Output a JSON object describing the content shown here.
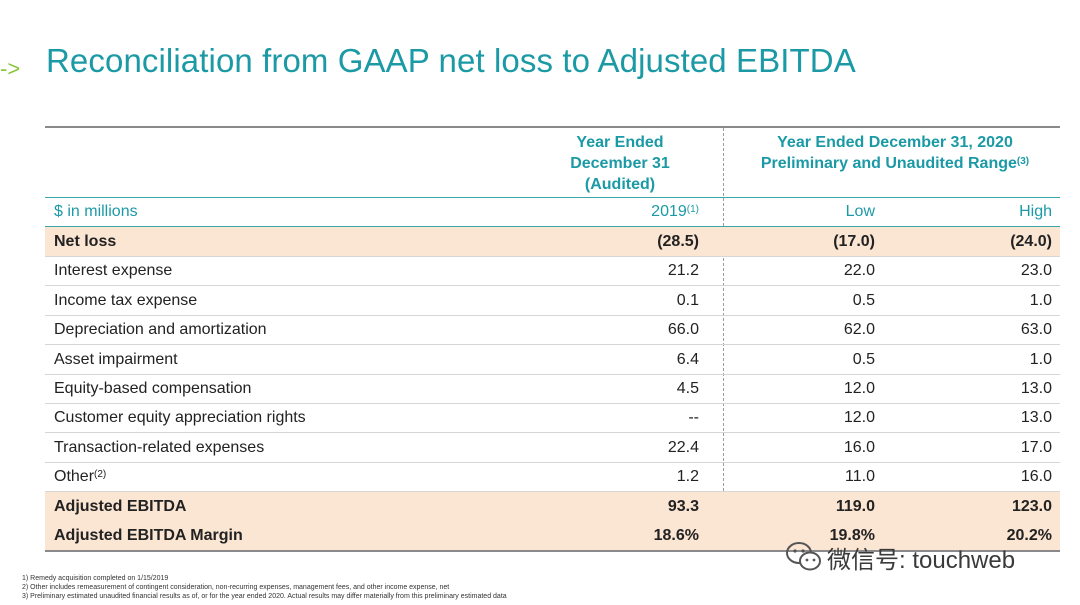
{
  "arrow": "->",
  "title": "Reconciliation from GAAP net loss to Adjusted EBITDA",
  "header": {
    "col1_lines": [
      "Year Ended",
      "December 31",
      "(Audited)"
    ],
    "col2_lines": [
      "Year Ended December 31, 2020",
      "Preliminary and Unaudited Range"
    ],
    "col2_sup": "(3)"
  },
  "subheader": {
    "unit_label": "$ in millions",
    "col1": "2019",
    "col1_sup": "(1)",
    "col2": "Low",
    "col3": "High"
  },
  "rows": [
    {
      "label": "Net loss",
      "sup": "",
      "v2019": "(28.5)",
      "low": "(17.0)",
      "high": "(24.0)",
      "highlight": true
    },
    {
      "label": "Interest expense",
      "sup": "",
      "v2019": "21.2",
      "low": "22.0",
      "high": "23.0",
      "highlight": false
    },
    {
      "label": "Income tax expense",
      "sup": "",
      "v2019": "0.1",
      "low": "0.5",
      "high": "1.0",
      "highlight": false
    },
    {
      "label": "Depreciation and amortization",
      "sup": "",
      "v2019": "66.0",
      "low": "62.0",
      "high": "63.0",
      "highlight": false
    },
    {
      "label": "Asset impairment",
      "sup": "",
      "v2019": "6.4",
      "low": "0.5",
      "high": "1.0",
      "highlight": false
    },
    {
      "label": "Equity-based compensation",
      "sup": "",
      "v2019": "4.5",
      "low": "12.0",
      "high": "13.0",
      "highlight": false
    },
    {
      "label": "Customer equity appreciation rights",
      "sup": "",
      "v2019": "--",
      "low": "12.0",
      "high": "13.0",
      "highlight": false
    },
    {
      "label": "Transaction-related expenses",
      "sup": "",
      "v2019": "22.4",
      "low": "16.0",
      "high": "17.0",
      "highlight": false
    },
    {
      "label": "Other",
      "sup": "(2)",
      "v2019": "1.2",
      "low": "11.0",
      "high": "16.0",
      "highlight": false
    },
    {
      "label": "Adjusted EBITDA",
      "sup": "",
      "v2019": "93.3",
      "low": "119.0",
      "high": "123.0",
      "highlight": true
    },
    {
      "label": "Adjusted EBITDA Margin",
      "sup": "",
      "v2019": "18.6%",
      "low": "19.8%",
      "high": "20.2%",
      "highlight": true
    }
  ],
  "footnotes": [
    "1) Remedy acquisition completed on 1/15/2019",
    "2) Other includes remeasurement of contingent consideration, non-recurring expenses, management fees, and other income expense, net",
    "3) Preliminary estimated unaudited financial results as of, or for the year ended 2020. Actual results may differ materially from this preliminary estimated data"
  ],
  "watermark": {
    "icon": "wechat-icon",
    "text": "微信号: touchweb"
  },
  "colors": {
    "accent": "#1b9aa6",
    "highlight_row": "#fbe5d3",
    "arrow": "#8cc63f"
  }
}
